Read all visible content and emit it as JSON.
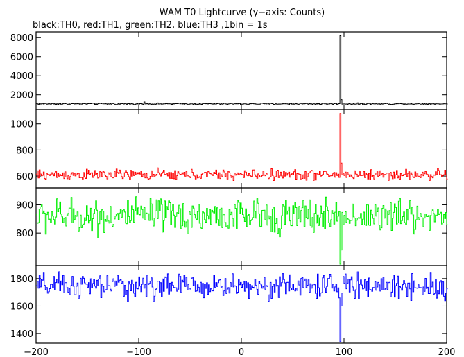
{
  "chart_data": {
    "type": "line",
    "title": "WAM T0 Lightcurve (y−axis: Counts)",
    "subtitle": "black:TH0, red:TH1, green:TH2, blue:TH3 ,1bin = 1s",
    "x": {
      "range": [
        -200,
        200
      ],
      "tick_values": [
        -200,
        -100,
        0,
        100,
        200
      ],
      "tick_labels": [
        "−200",
        "−100",
        "0",
        "100",
        "200"
      ]
    },
    "panels": [
      {
        "series_key": "TH0",
        "color": "#000000",
        "ylim": [
          450,
          8600
        ],
        "y_ticks": [
          2000,
          4000,
          6000,
          8000
        ],
        "y_tick_labels": [
          "2000",
          "4000",
          "6000",
          "8000"
        ],
        "baseline": 1050,
        "noise": 40,
        "features": [
          {
            "x": 96,
            "value": 8200
          },
          {
            "x": 97,
            "value": 1500
          },
          {
            "x": -95,
            "value": 1250
          }
        ]
      },
      {
        "series_key": "TH1",
        "color": "#ff0000",
        "ylim": [
          510,
          1110
        ],
        "y_ticks": [
          600,
          800,
          1000
        ],
        "y_tick_labels": [
          "600",
          "800",
          "1000"
        ],
        "baseline": 610,
        "noise": 20,
        "features": [
          {
            "x": 96,
            "value": 1080
          },
          {
            "x": 97,
            "value": 700
          }
        ]
      },
      {
        "series_key": "TH2",
        "color": "#00ee00",
        "ylim": [
          685,
          960
        ],
        "y_ticks": [
          800,
          900
        ],
        "y_tick_labels": [
          "800",
          "900"
        ],
        "baseline": 860,
        "noise": 30,
        "features": [
          {
            "x": 96,
            "value": 690
          },
          {
            "x": 97,
            "value": 740
          }
        ]
      },
      {
        "series_key": "TH3",
        "color": "#0000ff",
        "ylim": [
          1330,
          1895
        ],
        "y_ticks": [
          1400,
          1600,
          1800
        ],
        "y_tick_labels": [
          "1400",
          "1600",
          "1800"
        ],
        "baseline": 1745,
        "noise": 45,
        "features": [
          {
            "x": 96,
            "value": 1340
          },
          {
            "x": 97,
            "value": 1600
          }
        ]
      }
    ],
    "series": [
      {
        "name": "TH0",
        "color": "#000000"
      },
      {
        "name": "TH1",
        "color": "#ff0000"
      },
      {
        "name": "TH2",
        "color": "#00ee00"
      },
      {
        "name": "TH3",
        "color": "#0000ff"
      }
    ],
    "bin_size_s": 1
  }
}
